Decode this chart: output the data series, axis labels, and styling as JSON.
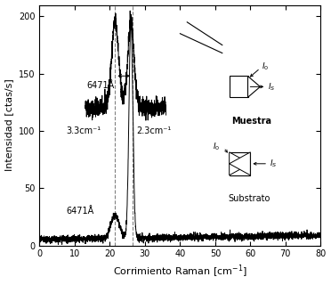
{
  "xlabel": "Corrimiento Raman [cm⁻¹]",
  "ylabel": "Intensidad [ctas/s]",
  "xlim": [
    0,
    80
  ],
  "ylim": [
    0,
    210
  ],
  "yticks": [
    0,
    50,
    100,
    150,
    200
  ],
  "xticks": [
    0,
    10,
    20,
    30,
    40,
    50,
    60,
    70,
    80
  ],
  "dashed_line1_x": 21.5,
  "dashed_line2_x": 26.5,
  "label_top": "6471Å",
  "label_bottom": "6471Å",
  "label_33": "3.3cm⁻¹",
  "label_23": "2.3cm⁻¹",
  "muestra_label": "Muestra",
  "substrato_label": "Substrato",
  "bg_color": "#ffffff",
  "line_color": "#000000"
}
